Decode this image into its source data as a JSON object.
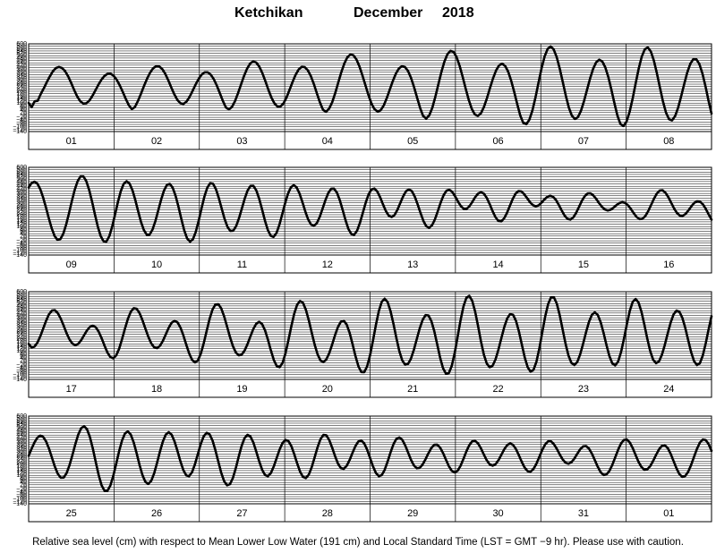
{
  "title": {
    "location": "Ketchikan",
    "month": "December",
    "year": "2018"
  },
  "footer_note": "Relative sea level (cm) with respect to Mean Lower Low Water (191 cm) and Local Standard Time (LST = GMT −9 hr). Please use with caution.",
  "chart_data": {
    "type": "line",
    "ylim": [
      -140,
      600
    ],
    "y_ticks": [
      "600",
      "580",
      "560",
      "540",
      "520",
      "500",
      "480",
      "460",
      "440",
      "420",
      "400",
      "380",
      "360",
      "340",
      "320",
      "300",
      "280",
      "260",
      "240",
      "220",
      "200",
      "180",
      "160",
      "140",
      "120",
      "100",
      "80",
      "60",
      "40",
      "20",
      "0",
      "−20",
      "−40",
      "−60",
      "−80",
      "−100",
      "−120",
      "−140"
    ],
    "grid": true,
    "panels": [
      {
        "days": [
          "01",
          "02",
          "03",
          "04",
          "05",
          "06",
          "07",
          "08"
        ],
        "series": [
          {
            "values": [
              101,
              66,
              116,
              120,
              177,
              225,
              278,
              326,
              369,
              396,
              405,
              396,
              370,
              327,
              271,
              211,
              156,
              116,
              96,
              98,
              121,
              160,
              207,
              256,
              298,
              330,
              347,
              348,
              331,
              298,
              251,
              195,
              136,
              82,
              49,
              66,
              117,
              178,
              244,
              305,
              356,
              393,
              412,
              410,
              388,
              348,
              293,
              232,
              174,
              127,
              99,
              93,
              112,
              151,
              202,
              256,
              304,
              340,
              360,
              360,
              340,
              302,
              248,
              184,
              118,
              63,
              47,
              68,
              117,
              184,
              259,
              331,
              392,
              434,
              452,
              442,
              408,
              353,
              285,
              212,
              146,
              97,
              71,
              72,
              99,
              149,
              214,
              281,
              341,
              385,
              406,
              403,
              376,
              327,
              259,
              180,
              104,
              43,
              27,
              53,
              106,
              183,
              272,
              359,
              433,
              486,
              510,
              504,
              469,
              409,
              332,
              248,
              165,
              93,
              47,
              29,
              40,
              80,
              142,
              214,
              287,
              349,
              392,
              412,
              404,
              371,
              312,
              234,
              145,
              58,
              -10,
              -30,
              -3,
              60,
              153,
              259,
              363,
              451,
              513,
              541,
              532,
              488,
              415,
              322,
              222,
              128,
              52,
              5,
              -8,
              13,
              66,
              141,
              226,
              308,
              375,
              418,
              432,
              414,
              365,
              288,
              193,
              90,
              -6,
              -68,
              -78,
              -39,
              39,
              148,
              273,
              394,
              493,
              557,
              578,
              553,
              487,
              390,
              277,
              162,
              61,
              -7,
              -34,
              -18,
              36,
              118,
              214,
              309,
              390,
              445,
              466,
              452,
              402,
              320,
              214,
              100,
              -6,
              -77,
              -93,
              -56,
              25,
              137,
              266,
              390,
              491,
              554,
              570,
              536,
              459,
              352,
              231,
              114,
              20,
              -36,
              -46,
              -10,
              62,
              158,
              261,
              358,
              431,
              471,
              470,
              429,
              350,
              243,
              122,
              12
            ]
          }
        ]
      },
      {
        "days": [
          "09",
          "10",
          "11",
          "12",
          "13",
          "14",
          "15",
          "16"
        ],
        "series": [
          {
            "values": [
              430,
              467,
              479,
              463,
              418,
              348,
              262,
              170,
              86,
              21,
              -12,
              -6,
              38,
              115,
              212,
              316,
              411,
              483,
              523,
              523,
              484,
              410,
              312,
              203,
              100,
              20,
              -24,
              -26,
              19,
              100,
              203,
              309,
              400,
              461,
              483,
              464,
              409,
              326,
              230,
              139,
              70,
              31,
              33,
              75,
              147,
              238,
              329,
              405,
              452,
              460,
              428,
              360,
              267,
              164,
              68,
              0,
              -27,
              -8,
              55,
              148,
              253,
              353,
              428,
              466,
              461,
              416,
              341,
              252,
              165,
              98,
              63,
              65,
              103,
              170,
              253,
              337,
              405,
              443,
              444,
              406,
              336,
              246,
              152,
              72,
              23,
              13,
              45,
              113,
              203,
              296,
              377,
              431,
              450,
              431,
              380,
              308,
              229,
              161,
              118,
              106,
              128,
              180,
              250,
              323,
              384,
              419,
              420,
              386,
              322,
              239,
              152,
              79,
              37,
              32,
              66,
              133,
              218,
              303,
              373,
              414,
              421,
              396,
              347,
              286,
              230,
              192,
              180,
              198,
              242,
              300,
              357,
              399,
              414,
              399,
              354,
              288,
              215,
              148,
              103,
              90,
              111,
              161,
              230,
              303,
              364,
              402,
              411,
              393,
              356,
              312,
              273,
              250,
              250,
              272,
              309,
              349,
              379,
              390,
              378,
              342,
              290,
              231,
              180,
              148,
              144,
              168,
              215,
              274,
              333,
              378,
              400,
              397,
              373,
              340,
              306,
              281,
              271,
              279,
              302,
              329,
              351,
              360,
              352,
              325,
              283,
              236,
              193,
              165,
              159,
              177,
              215,
              265,
              317,
              357,
              380,
              381,
              363,
              333,
              297,
              266,
              244,
              236,
              242,
              260,
              281,
              298,
              306,
              300,
              280,
              249,
              213,
              181,
              163,
              165,
              188,
              229,
              281,
              334,
              378,
              403,
              406,
              386,
              349,
              301,
              253,
              215,
              193,
              191,
              207,
              237,
              271,
              300,
              314,
              311,
              288,
              250,
              203,
              158
            ]
          }
        ]
      },
      {
        "days": [
          "17",
          "18",
          "19",
          "20",
          "21",
          "22",
          "23",
          "24"
        ],
        "series": [
          {
            "values": [
              159,
              130,
              137,
              170,
              224,
              290,
              356,
              411,
              441,
              444,
              419,
              373,
              313,
              250,
              197,
              162,
              149,
              160,
              191,
              233,
              274,
              303,
              313,
              300,
              263,
              208,
              145,
              87,
              48,
              38,
              62,
              118,
              199,
              288,
              370,
              431,
              461,
              456,
              420,
              360,
              289,
              220,
              165,
              131,
              124,
              143,
              185,
              240,
              296,
              338,
              355,
              342,
              299,
              233,
              154,
              80,
              25,
              3,
              20,
              77,
              165,
              269,
              370,
              449,
              492,
              495,
              459,
              391,
              305,
              217,
              141,
              87,
              63,
              69,
              103,
              158,
              224,
              286,
              330,
              346,
              327,
              274,
              195,
              105,
              25,
              -27,
              -37,
              -1,
              79,
              189,
              307,
              414,
              490,
              522,
              507,
              448,
              359,
              255,
              154,
              72,
              20,
              6,
              28,
              81,
              154,
              234,
              303,
              347,
              355,
              322,
              252,
              157,
              56,
              -29,
              -78,
              -79,
              -29,
              65,
              188,
              320,
              437,
              515,
              541,
              513,
              437,
              330,
              210,
              101,
              22,
              -16,
              -10,
              35,
              109,
              200,
              290,
              362,
              402,
              400,
              353,
              267,
              156,
              43,
              -46,
              -92,
              -86,
              -25,
              84,
              220,
              359,
              476,
              549,
              565,
              523,
              432,
              310,
              180,
              68,
              -7,
              -38,
              -24,
              30,
              113,
              210,
              303,
              375,
              412,
              405,
              354,
              265,
              154,
              45,
              -37,
              -75,
              -59,
              9,
              121,
              257,
              390,
              495,
              553,
              553,
              498,
              400,
              279,
              159,
              60,
              -1,
              -19,
              7,
              72,
              161,
              258,
              345,
              405,
              426,
              405,
              344,
              253,
              150,
              57,
              -5,
              -22,
              11,
              91,
              203,
              327,
              439,
              515,
              539,
              508,
              430,
              321,
              203,
              98,
              26,
              -3,
              12,
              68,
              152,
              249,
              340,
              409,
              441,
              431,
              380,
              295,
              192,
              91,
              15,
              -19,
              -4,
              61,
              163,
              282,
              393
            ]
          }
        ]
      },
      {
        "days": [
          "25",
          "26",
          "27",
          "28",
          "29",
          "30",
          "31",
          "01"
        ],
        "series": [
          {
            "values": [
              265,
              324,
              378,
              418,
              435,
              424,
              385,
              324,
              248,
              172,
              112,
              80,
              81,
              118,
              185,
              271,
              363,
              444,
              498,
              515,
              489,
              423,
              326,
              212,
              102,
              16,
              -30,
              -31,
              14,
              95,
              197,
              303,
              394,
              453,
              471,
              444,
              378,
              287,
              188,
              102,
              45,
              28,
              53,
              116,
              205,
              301,
              386,
              444,
              464,
              443,
              386,
              306,
              219,
              145,
              100,
              93,
              127,
              195,
              281,
              366,
              430,
              459,
              447,
              395,
              312,
              215,
              121,
              50,
              16,
              26,
              78,
              162,
              260,
              350,
              415,
              442,
              428,
              377,
              301,
              219,
              148,
              103,
              93,
              119,
              175,
              247,
              318,
              373,
              399,
              390,
              348,
              280,
              202,
              132,
              87,
              77,
              106,
              169,
              252,
              337,
              405,
              441,
              438,
              398,
              334,
              262,
              199,
              161,
              155,
              181,
              230,
              291,
              348,
              386,
              394,
              369,
              316,
              246,
              175,
              120,
              93,
              102,
              146,
              215,
              293,
              362,
              407,
              420,
              401,
              355,
              294,
              232,
              184,
              160,
              163,
              191,
              236,
              287,
              331,
              358,
              359,
              334,
              289,
              232,
              177,
              138,
              124,
              139,
              180,
              239,
              302,
              355,
              387,
              391,
              369,
              327,
              275,
              226,
              192,
              181,
              194,
              228,
              274,
              321,
              356,
              369,
              357,
              321,
              269,
              212,
              164,
              135,
              131,
              154,
              198,
              256,
              314,
              361,
              387,
              387,
              363,
              323,
              276,
              234,
              206,
              198,
              211,
              242,
              282,
              320,
              344,
              347,
              326,
              284,
              229,
              173,
              127,
              103,
              107,
              137,
              188,
              252,
              316,
              369,
              399,
              402,
              377,
              330,
              271,
              213,
              170,
              147,
              151,
              178,
              222,
              273,
              319,
              349,
              354,
              330,
              282,
              220,
              159,
              110,
              87,
              95,
              130,
              187,
              256,
              323,
              376,
              402,
              398,
              364,
              307
            ]
          }
        ]
      }
    ]
  }
}
